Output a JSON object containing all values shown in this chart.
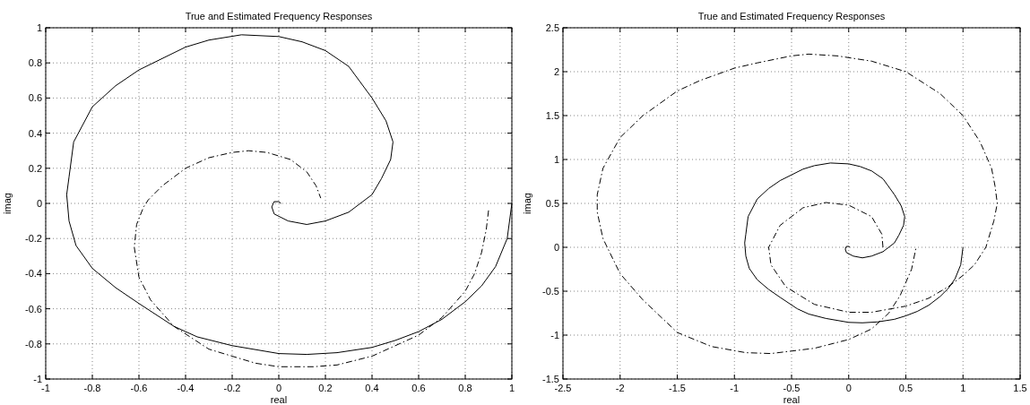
{
  "chart_data": [
    {
      "type": "line",
      "title": "True and Estimated Frequency Responses",
      "xlabel": "real",
      "ylabel": "imag",
      "xlim": [
        -1,
        1
      ],
      "ylim": [
        -1,
        1
      ],
      "xticks": [
        -1,
        -0.8,
        -0.6,
        -0.4,
        -0.2,
        0,
        0.2,
        0.4,
        0.6,
        0.8,
        1
      ],
      "yticks": [
        -1,
        -0.8,
        -0.6,
        -0.4,
        -0.2,
        0,
        0.2,
        0.4,
        0.6,
        0.8,
        1
      ],
      "grid": true,
      "marker": "none",
      "series": [
        {
          "color": "#000000",
          "line_style": "solid",
          "x": [
            1,
            0.98,
            0.93,
            0.87,
            0.8,
            0.7,
            0.6,
            0.5,
            0.4,
            0.25,
            0.12,
            0,
            -0.2,
            -0.35,
            -0.45,
            -0.6,
            -0.7,
            -0.8,
            -0.87,
            -0.9,
            -0.91,
            -0.9,
            -0.88,
            -0.8,
            -0.7,
            -0.6,
            -0.4,
            -0.3,
            -0.16,
            0,
            0.1,
            0.2,
            0.3,
            0.4,
            0.46,
            0.49,
            0.48,
            0.44,
            0.4,
            0.3,
            0.2,
            0.12,
            0.04,
            -0.02,
            -0.03,
            -0.02,
            0,
            0.01
          ],
          "values": [
            0,
            -0.2,
            -0.36,
            -0.47,
            -0.56,
            -0.66,
            -0.73,
            -0.78,
            -0.82,
            -0.85,
            -0.86,
            -0.855,
            -0.81,
            -0.76,
            -0.7,
            -0.57,
            -0.48,
            -0.37,
            -0.24,
            -0.1,
            0.05,
            0.15,
            0.35,
            0.55,
            0.67,
            0.76,
            0.89,
            0.93,
            0.96,
            0.95,
            0.92,
            0.87,
            0.78,
            0.6,
            0.47,
            0.35,
            0.25,
            0.14,
            0.05,
            -0.05,
            -0.1,
            -0.12,
            -0.1,
            -0.06,
            -0.02,
            0.01,
            0.01,
            0
          ]
        },
        {
          "color": "#000000",
          "line_style": "dashed",
          "x": [
            0.9,
            0.89,
            0.87,
            0.84,
            0.8,
            0.7,
            0.6,
            0.4,
            0.25,
            0.15,
            0,
            -0.1,
            -0.3,
            -0.45,
            -0.55,
            -0.6,
            -0.62,
            -0.61,
            -0.58,
            -0.56,
            -0.5,
            -0.4,
            -0.3,
            -0.2,
            -0.13,
            -0.05,
            0.05,
            0.12,
            0.16,
            0.18
          ],
          "values": [
            -0.04,
            -0.15,
            -0.28,
            -0.4,
            -0.5,
            -0.65,
            -0.75,
            -0.87,
            -0.92,
            -0.93,
            -0.93,
            -0.91,
            -0.83,
            -0.7,
            -0.55,
            -0.42,
            -0.25,
            -0.12,
            -0.02,
            0.02,
            0.1,
            0.2,
            0.26,
            0.29,
            0.3,
            0.29,
            0.25,
            0.18,
            0.1,
            0.03
          ]
        }
      ]
    },
    {
      "type": "line",
      "title": "True and Estimated Frequency Responses",
      "xlabel": "real",
      "ylabel": "imag",
      "xlim": [
        -2.5,
        1.5
      ],
      "ylim": [
        -1.5,
        2.5
      ],
      "xticks": [
        -2.5,
        -2,
        -1.5,
        -1,
        -0.5,
        0,
        0.5,
        1,
        1.5
      ],
      "yticks": [
        -1.5,
        -1,
        -0.5,
        0,
        0.5,
        1,
        1.5,
        2,
        2.5
      ],
      "grid": true,
      "marker": "none",
      "series": [
        {
          "color": "#000000",
          "line_style": "solid",
          "x": [
            1,
            0.98,
            0.93,
            0.87,
            0.8,
            0.7,
            0.6,
            0.5,
            0.4,
            0.25,
            0.12,
            0,
            -0.2,
            -0.35,
            -0.45,
            -0.6,
            -0.7,
            -0.8,
            -0.87,
            -0.9,
            -0.91,
            -0.9,
            -0.88,
            -0.8,
            -0.7,
            -0.6,
            -0.4,
            -0.3,
            -0.16,
            0,
            0.1,
            0.2,
            0.3,
            0.4,
            0.46,
            0.49,
            0.48,
            0.44,
            0.4,
            0.3,
            0.2,
            0.12,
            0.04,
            -0.02,
            -0.03,
            -0.02,
            0,
            0.01
          ],
          "values": [
            0,
            -0.2,
            -0.36,
            -0.47,
            -0.56,
            -0.66,
            -0.73,
            -0.78,
            -0.82,
            -0.85,
            -0.86,
            -0.855,
            -0.81,
            -0.76,
            -0.7,
            -0.57,
            -0.48,
            -0.37,
            -0.24,
            -0.1,
            0.05,
            0.15,
            0.35,
            0.55,
            0.67,
            0.76,
            0.89,
            0.93,
            0.96,
            0.95,
            0.92,
            0.87,
            0.78,
            0.6,
            0.47,
            0.35,
            0.25,
            0.14,
            0.05,
            -0.05,
            -0.1,
            -0.12,
            -0.1,
            -0.06,
            -0.02,
            0.01,
            0.01,
            0
          ]
        },
        {
          "color": "#000000",
          "line_style": "dashed",
          "x": [
            0.3,
            0.29,
            0.2,
            0,
            -0.2,
            -0.4,
            -0.6,
            -0.7,
            -0.68,
            -0.55,
            -0.3,
            0,
            0.2,
            0.5,
            0.7,
            0.87,
            1,
            1.1,
            1.2,
            1.27,
            1.3,
            1.28,
            1.25,
            1.15,
            1,
            0.8,
            0.5,
            0.2,
            -0.1,
            -0.35,
            -0.5,
            -0.8,
            -1,
            -1.3,
            -1.5,
            -1.8,
            -2,
            -2.15,
            -2.2,
            -2.2,
            -2.15,
            -2,
            -1.8,
            -1.5,
            -1.2,
            -0.9,
            -0.68,
            -0.3,
            0,
            0.2,
            0.35,
            0.45,
            0.55,
            0.59
          ],
          "values": [
            0,
            0.15,
            0.35,
            0.48,
            0.51,
            0.45,
            0.25,
            0,
            -0.2,
            -0.45,
            -0.65,
            -0.74,
            -0.74,
            -0.67,
            -0.58,
            -0.45,
            -0.32,
            -0.2,
            0,
            0.3,
            0.5,
            0.7,
            0.9,
            1.2,
            1.5,
            1.75,
            2,
            2.12,
            2.18,
            2.2,
            2.18,
            2.1,
            2.04,
            1.9,
            1.78,
            1.5,
            1.25,
            0.9,
            0.6,
            0.4,
            0.1,
            -0.3,
            -0.6,
            -0.97,
            -1.13,
            -1.2,
            -1.21,
            -1.15,
            -1.05,
            -0.93,
            -0.75,
            -0.55,
            -0.25,
            0
          ]
        }
      ]
    }
  ]
}
